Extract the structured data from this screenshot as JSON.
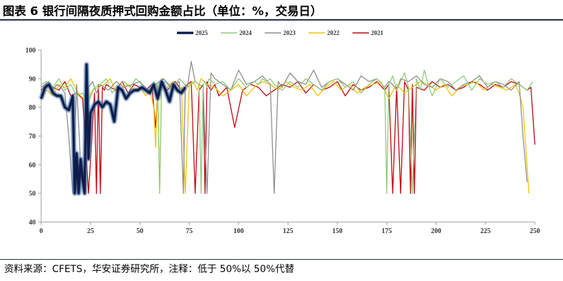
{
  "title": "图表 6  银行间隔夜质押式回购金额占比（单位：%，交易日）",
  "source": "资料来源：CFETS，华安证券研究所，注释：低于 50%以 50%代替",
  "chart_data": {
    "type": "line",
    "xlim": [
      0,
      250
    ],
    "ylim": [
      40,
      100
    ],
    "x_ticks": [
      0,
      25,
      50,
      75,
      100,
      125,
      150,
      175,
      200,
      225,
      250
    ],
    "y_ticks": [
      40,
      50,
      60,
      70,
      80,
      90,
      100
    ],
    "legend_position": "top",
    "grid": false,
    "series": [
      {
        "name": "2025",
        "color": "#0b1f4b",
        "glow": true,
        "x": [
          0,
          2,
          4,
          6,
          8,
          10,
          12,
          14,
          16,
          17,
          18,
          19,
          20,
          21,
          22,
          23,
          24,
          25,
          27,
          29,
          31,
          33,
          35,
          37,
          39,
          41,
          43,
          45,
          47,
          49,
          51,
          53,
          55,
          57,
          59,
          61,
          63,
          65,
          67,
          69,
          71,
          73
        ],
        "y": [
          83,
          87,
          88,
          85,
          84,
          84,
          80,
          79,
          84,
          50,
          64,
          50,
          62,
          55,
          50,
          95,
          62,
          78,
          81,
          82,
          80,
          82,
          81,
          75,
          87,
          86,
          83,
          85,
          86,
          86,
          87,
          86,
          85,
          88,
          83,
          89,
          86,
          82,
          88,
          86,
          85,
          87
        ]
      },
      {
        "name": "2024",
        "color": "#8fc97a",
        "x": [
          0,
          3,
          6,
          9,
          12,
          15,
          18,
          21,
          24,
          27,
          30,
          33,
          36,
          39,
          42,
          45,
          48,
          51,
          54,
          57,
          59,
          60,
          61,
          63,
          66,
          70,
          74,
          78,
          80,
          81,
          82,
          83,
          84,
          85,
          88,
          92,
          96,
          100,
          104,
          108,
          110,
          112,
          114,
          116,
          118,
          122,
          126,
          130,
          134,
          138,
          142,
          146,
          150,
          154,
          158,
          162,
          166,
          170,
          174,
          175,
          176,
          178,
          180,
          182,
          184,
          186,
          188,
          190,
          192,
          194,
          196,
          198,
          202,
          206,
          210,
          214,
          218,
          222,
          226,
          230,
          234,
          238,
          242,
          246,
          249
        ],
        "y": [
          88,
          89,
          87,
          90,
          86,
          88,
          84,
          85,
          82,
          87,
          88,
          90,
          85,
          88,
          89,
          87,
          90,
          88,
          85,
          89,
          87,
          50,
          88,
          89,
          86,
          90,
          87,
          89,
          88,
          50,
          88,
          89,
          87,
          90,
          88,
          89,
          86,
          90,
          87,
          89,
          88,
          90,
          89,
          90,
          88,
          86,
          89,
          87,
          90,
          88,
          86,
          89,
          90,
          87,
          89,
          85,
          88,
          90,
          87,
          50,
          88,
          91,
          86,
          89,
          92,
          87,
          50,
          90,
          86,
          93,
          88,
          84,
          90,
          87,
          89,
          91,
          86,
          90,
          88,
          89,
          87,
          90,
          88,
          86,
          89
        ]
      },
      {
        "name": "2023",
        "color": "#8c8c8c",
        "x": [
          0,
          2,
          4,
          6,
          8,
          10,
          12,
          14,
          16,
          18,
          20,
          22,
          24,
          26,
          28,
          30,
          34,
          38,
          42,
          46,
          50,
          54,
          58,
          62,
          66,
          70,
          72,
          73,
          74,
          76,
          78,
          80,
          82,
          84,
          86,
          88,
          92,
          96,
          100,
          104,
          108,
          112,
          116,
          118,
          120,
          122,
          126,
          130,
          134,
          138,
          142,
          146,
          150,
          154,
          158,
          162,
          166,
          170,
          174,
          176,
          178,
          180,
          182,
          186,
          190,
          194,
          198,
          202,
          206,
          210,
          214,
          218,
          222,
          226,
          230,
          234,
          238,
          242,
          244,
          246
        ],
        "y": [
          87,
          88,
          89,
          86,
          88,
          87,
          85,
          70,
          50,
          88,
          60,
          50,
          87,
          89,
          85,
          88,
          86,
          89,
          87,
          88,
          89,
          86,
          88,
          90,
          87,
          89,
          50,
          88,
          87,
          96,
          89,
          88,
          87,
          50,
          92,
          90,
          88,
          86,
          93,
          88,
          89,
          91,
          88,
          50,
          89,
          87,
          92,
          89,
          88,
          93,
          87,
          89,
          90,
          88,
          86,
          91,
          89,
          90,
          87,
          89,
          88,
          86,
          90,
          89,
          91,
          88,
          87,
          90,
          89,
          86,
          88,
          89,
          91,
          87,
          89,
          88,
          86,
          89,
          70,
          54
        ]
      },
      {
        "name": "2022",
        "color": "#f2c200",
        "x": [
          0,
          3,
          6,
          9,
          12,
          15,
          18,
          20,
          23,
          26,
          29,
          32,
          35,
          38,
          41,
          44,
          47,
          50,
          53,
          55,
          57,
          58,
          59,
          60,
          61,
          62,
          63,
          65,
          67,
          69,
          71,
          73,
          75,
          77,
          79,
          81,
          84,
          88,
          92,
          96,
          100,
          104,
          108,
          112,
          116,
          120,
          124,
          128,
          132,
          136,
          140,
          144,
          148,
          152,
          156,
          160,
          164,
          168,
          172,
          176,
          180,
          184,
          188,
          192,
          196,
          200,
          204,
          208,
          212,
          216,
          220,
          224,
          228,
          232,
          236,
          240,
          242,
          244,
          246,
          247
        ],
        "y": [
          85,
          86,
          84,
          88,
          87,
          90,
          86,
          84,
          82,
          86,
          87,
          88,
          90,
          85,
          87,
          88,
          86,
          87,
          84,
          86,
          80,
          66,
          88,
          50,
          90,
          88,
          86,
          88,
          89,
          85,
          87,
          50,
          88,
          89,
          86,
          90,
          88,
          87,
          84,
          86,
          88,
          84,
          87,
          89,
          88,
          86,
          89,
          87,
          86,
          88,
          84,
          87,
          89,
          86,
          88,
          85,
          87,
          88,
          89,
          83,
          88,
          85,
          87,
          89,
          88,
          86,
          88,
          84,
          87,
          88,
          89,
          86,
          88,
          87,
          86,
          88,
          85,
          80,
          60,
          50
        ]
      },
      {
        "name": "2021",
        "color": "#c0000b",
        "x": [
          0,
          3,
          6,
          9,
          12,
          15,
          18,
          21,
          24,
          27,
          28,
          29,
          30,
          31,
          32,
          33,
          35,
          38,
          41,
          44,
          47,
          50,
          53,
          56,
          58,
          59,
          60,
          61,
          62,
          64,
          66,
          68,
          70,
          72,
          74,
          76,
          78,
          80,
          82,
          83,
          84,
          85,
          86,
          88,
          90,
          94,
          98,
          102,
          106,
          110,
          114,
          118,
          122,
          126,
          130,
          134,
          138,
          142,
          146,
          150,
          154,
          158,
          162,
          166,
          170,
          174,
          176,
          178,
          180,
          182,
          184,
          186,
          187,
          188,
          189,
          190,
          194,
          198,
          202,
          206,
          210,
          214,
          218,
          222,
          226,
          230,
          234,
          238,
          242,
          246,
          248,
          250
        ],
        "y": [
          86,
          88,
          87,
          86,
          89,
          84,
          85,
          83,
          50,
          85,
          50,
          88,
          50,
          87,
          86,
          88,
          87,
          86,
          89,
          85,
          88,
          87,
          86,
          88,
          73,
          85,
          84,
          90,
          87,
          86,
          88,
          89,
          87,
          86,
          88,
          89,
          50,
          86,
          88,
          50,
          89,
          87,
          86,
          88,
          84,
          87,
          73,
          86,
          88,
          87,
          84,
          86,
          88,
          87,
          89,
          85,
          88,
          86,
          87,
          89,
          84,
          88,
          86,
          87,
          89,
          86,
          88,
          50,
          87,
          50,
          89,
          86,
          50,
          88,
          50,
          87,
          86,
          89,
          87,
          88,
          86,
          87,
          89,
          88,
          86,
          88,
          87,
          89,
          88,
          86,
          87,
          67
        ]
      }
    ]
  }
}
